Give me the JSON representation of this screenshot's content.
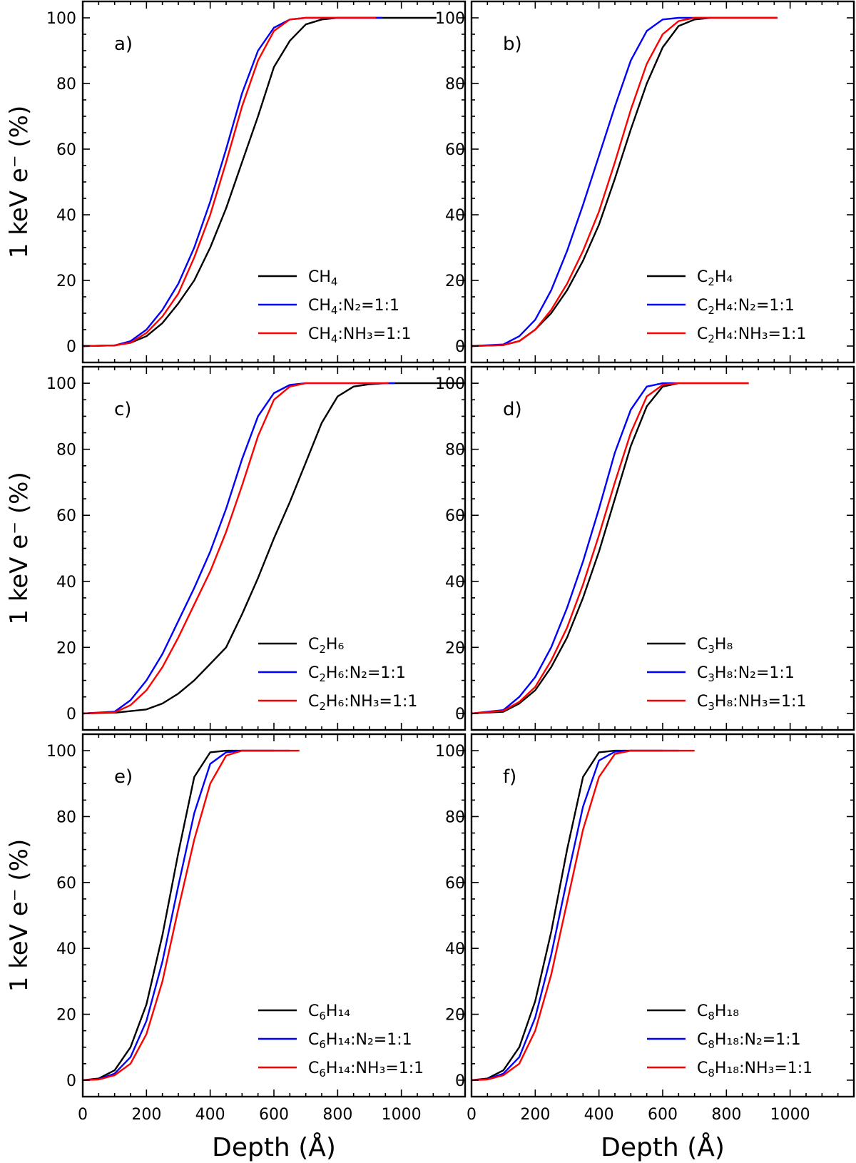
{
  "chart_data": [
    {
      "type": "line",
      "panel_label": "a)",
      "ylabel": "1 keV e⁻ (%)",
      "xlabel": "",
      "xlim": [
        0,
        1200
      ],
      "ylim": [
        -5,
        105
      ],
      "series": [
        {
          "name": "CH4",
          "label_base": "CH",
          "label_sub": "4",
          "label_rest": "",
          "color": "#000000",
          "x": [
            0,
            100,
            150,
            200,
            250,
            300,
            350,
            400,
            450,
            500,
            550,
            600,
            650,
            700,
            750,
            800,
            850,
            1110
          ],
          "y": [
            0,
            0.2,
            1,
            3,
            7,
            13,
            20,
            30,
            42,
            56,
            70,
            85,
            93,
            98,
            99.5,
            100,
            100,
            100
          ]
        },
        {
          "name": "CH4:N2=1:1",
          "label_base": "CH",
          "label_sub": "4",
          "label_rest": ":N₂=1:1",
          "color": "#0000ff",
          "x": [
            0,
            100,
            150,
            200,
            250,
            300,
            350,
            400,
            450,
            500,
            550,
            600,
            650,
            700,
            750,
            940
          ],
          "y": [
            0,
            0.2,
            1.5,
            5,
            11,
            19,
            30,
            44,
            60,
            77,
            90,
            97,
            99.5,
            100,
            100,
            100
          ]
        },
        {
          "name": "CH4:NH3=1:1",
          "label_base": "CH",
          "label_sub": "4",
          "label_rest": ":NH₃=1:1",
          "color": "#ff0000",
          "x": [
            0,
            100,
            150,
            200,
            250,
            300,
            350,
            400,
            450,
            500,
            550,
            600,
            650,
            700,
            750,
            920
          ],
          "y": [
            0,
            0.2,
            1,
            4,
            9,
            16,
            27,
            40,
            56,
            73,
            87,
            96,
            99.5,
            100,
            100,
            100
          ]
        }
      ]
    },
    {
      "type": "line",
      "panel_label": "b)",
      "ylabel": "",
      "xlabel": "",
      "xlim": [
        0,
        1200
      ],
      "ylim": [
        -5,
        105
      ],
      "series": [
        {
          "name": "C2H4",
          "label_base": "C",
          "label_sub": "2",
          "label_rest": "H₄",
          "color": "#000000",
          "x": [
            0,
            100,
            150,
            200,
            250,
            300,
            350,
            400,
            450,
            500,
            550,
            600,
            650,
            700,
            750,
            800,
            960
          ],
          "y": [
            0,
            0.3,
            1.5,
            5,
            10,
            17,
            26,
            37,
            51,
            66,
            80,
            91,
            97.5,
            99.5,
            100,
            100,
            100
          ]
        },
        {
          "name": "C2H4:N2=1:1",
          "label_base": "C",
          "label_sub": "2",
          "label_rest": "H₄:N₂=1:1",
          "color": "#0000ff",
          "x": [
            0,
            100,
            150,
            200,
            250,
            300,
            350,
            400,
            450,
            500,
            550,
            600,
            650,
            700,
            750
          ],
          "y": [
            0,
            0.5,
            3,
            8,
            17,
            29,
            43,
            58,
            73,
            87,
            96,
            99.5,
            100,
            100,
            100
          ]
        },
        {
          "name": "C2H4:NH3=1:1",
          "label_base": "C",
          "label_sub": "2",
          "label_rest": "H₄:NH₃=1:1",
          "color": "#ff0000",
          "x": [
            0,
            100,
            150,
            200,
            250,
            300,
            350,
            400,
            450,
            500,
            550,
            600,
            650,
            700,
            750,
            800,
            960
          ],
          "y": [
            0,
            0.3,
            1.5,
            5,
            11,
            19,
            29,
            41,
            56,
            72,
            86,
            95,
            99,
            100,
            100,
            100,
            100
          ]
        }
      ]
    },
    {
      "type": "line",
      "panel_label": "c)",
      "ylabel": "1 keV e⁻ (%)",
      "xlabel": "",
      "xlim": [
        0,
        1200
      ],
      "ylim": [
        -5,
        105
      ],
      "series": [
        {
          "name": "C2H6",
          "label_base": "C",
          "label_sub": "2",
          "label_rest": "H₆",
          "color": "#000000",
          "x": [
            0,
            100,
            200,
            250,
            300,
            350,
            400,
            450,
            500,
            550,
            600,
            650,
            700,
            750,
            800,
            850,
            900,
            950,
            1000,
            1200
          ],
          "y": [
            0,
            0.2,
            1.2,
            3,
            6,
            10,
            15,
            20,
            30,
            41,
            53,
            64,
            76,
            88,
            96,
            99,
            99.7,
            100,
            100,
            100
          ]
        },
        {
          "name": "C2H6:N2=1:1",
          "label_base": "C",
          "label_sub": "2",
          "label_rest": "H₆:N₂=1:1",
          "color": "#0000ff",
          "x": [
            0,
            100,
            150,
            200,
            250,
            300,
            350,
            400,
            450,
            500,
            550,
            600,
            650,
            700,
            750,
            980
          ],
          "y": [
            0,
            0.5,
            4,
            10,
            18,
            28,
            38,
            49,
            62,
            77,
            90,
            97,
            99.5,
            100,
            100,
            100
          ]
        },
        {
          "name": "C2H6:NH3=1:1",
          "label_base": "C",
          "label_sub": "2",
          "label_rest": "H₆:NH₃=1:1",
          "color": "#ff0000",
          "x": [
            0,
            100,
            150,
            200,
            250,
            300,
            350,
            400,
            450,
            500,
            550,
            600,
            650,
            700,
            750,
            960
          ],
          "y": [
            0,
            0.3,
            2.5,
            7,
            14,
            23,
            33,
            43,
            55,
            69,
            84,
            95,
            99,
            100,
            100,
            100
          ]
        }
      ]
    },
    {
      "type": "line",
      "panel_label": "d)",
      "ylabel": "",
      "xlabel": "",
      "xlim": [
        0,
        1200
      ],
      "ylim": [
        -5,
        105
      ],
      "series": [
        {
          "name": "C3H8",
          "label_base": "C",
          "label_sub": "3",
          "label_rest": "H₈",
          "color": "#000000",
          "x": [
            0,
            100,
            150,
            200,
            250,
            300,
            350,
            400,
            450,
            500,
            550,
            600,
            650,
            700,
            870
          ],
          "y": [
            0,
            0.5,
            3,
            7,
            14,
            23,
            35,
            49,
            65,
            81,
            93,
            99,
            100,
            100,
            100
          ]
        },
        {
          "name": "C3H8:N2=1:1",
          "label_base": "C",
          "label_sub": "3",
          "label_rest": "H₈:N₂=1:1",
          "color": "#0000ff",
          "x": [
            0,
            100,
            150,
            200,
            250,
            300,
            350,
            400,
            450,
            500,
            550,
            600,
            650
          ],
          "y": [
            0,
            1,
            5,
            11,
            20,
            32,
            46,
            62,
            79,
            92,
            99,
            100,
            100
          ]
        },
        {
          "name": "C3H8:NH3=1:1",
          "label_base": "C",
          "label_sub": "3",
          "label_rest": "H₈:NH₃=1:1",
          "color": "#ff0000",
          "x": [
            0,
            100,
            150,
            200,
            250,
            300,
            350,
            400,
            450,
            500,
            550,
            600,
            650,
            700,
            870
          ],
          "y": [
            0,
            0.8,
            3.5,
            8,
            16,
            26,
            39,
            54,
            70,
            85,
            96,
            99.5,
            100,
            100,
            100
          ]
        }
      ]
    },
    {
      "type": "line",
      "panel_label": "e)",
      "ylabel": "1 keV e⁻ (%)",
      "xlabel": "Depth (Å)",
      "xlim": [
        0,
        1200
      ],
      "ylim": [
        -5,
        105
      ],
      "series": [
        {
          "name": "C6H14",
          "label_base": "C",
          "label_sub": "6",
          "label_rest": "H₁₄",
          "color": "#000000",
          "x": [
            0,
            50,
            100,
            150,
            200,
            250,
            300,
            350,
            400,
            450,
            600
          ],
          "y": [
            0,
            0.5,
            3,
            10,
            23,
            44,
            69,
            92,
            99.5,
            100,
            100
          ]
        },
        {
          "name": "C6H14:N2=1:1",
          "label_base": "C",
          "label_sub": "6",
          "label_rest": "H₁₄:N₂=1:1",
          "color": "#0000ff",
          "x": [
            0,
            50,
            100,
            150,
            200,
            250,
            300,
            350,
            400,
            450,
            500,
            650
          ],
          "y": [
            0,
            0.3,
            2,
            7,
            18,
            36,
            59,
            81,
            96,
            99.5,
            100,
            100
          ]
        },
        {
          "name": "C6H14:NH3=1:1",
          "label_base": "C",
          "label_sub": "6",
          "label_rest": "H₁₄:NH₃=1:1",
          "color": "#ff0000",
          "x": [
            0,
            50,
            100,
            150,
            200,
            250,
            300,
            350,
            400,
            450,
            500,
            680
          ],
          "y": [
            0,
            0.2,
            1.5,
            5,
            14,
            30,
            52,
            73,
            90,
            98.5,
            100,
            100
          ]
        }
      ]
    },
    {
      "type": "line",
      "panel_label": "f)",
      "ylabel": "",
      "xlabel": "Depth (Å)",
      "xlim": [
        0,
        1200
      ],
      "ylim": [
        -5,
        105
      ],
      "series": [
        {
          "name": "C8H18",
          "label_base": "C",
          "label_sub": "8",
          "label_rest": "H₁₈",
          "color": "#000000",
          "x": [
            0,
            50,
            100,
            150,
            200,
            250,
            300,
            350,
            400,
            450,
            600
          ],
          "y": [
            0,
            0.5,
            3,
            10,
            24,
            45,
            70,
            92,
            99.5,
            100,
            100
          ]
        },
        {
          "name": "C8H18:N2=1:1",
          "label_base": "C",
          "label_sub": "8",
          "label_rest": "H₁₈:N₂=1:1",
          "color": "#0000ff",
          "x": [
            0,
            50,
            100,
            150,
            200,
            250,
            300,
            350,
            400,
            450,
            500,
            650
          ],
          "y": [
            0,
            0.3,
            2,
            7,
            19,
            38,
            61,
            83,
            97,
            99.7,
            100,
            100
          ]
        },
        {
          "name": "C8H18:NH3=1:1",
          "label_base": "C",
          "label_sub": "8",
          "label_rest": "H₁₈:NH₃=1:1",
          "color": "#ff0000",
          "x": [
            0,
            50,
            100,
            150,
            200,
            250,
            300,
            350,
            400,
            450,
            500,
            700
          ],
          "y": [
            0,
            0.2,
            1.5,
            5,
            15,
            32,
            54,
            76,
            92,
            99,
            100,
            100
          ]
        }
      ]
    }
  ]
}
